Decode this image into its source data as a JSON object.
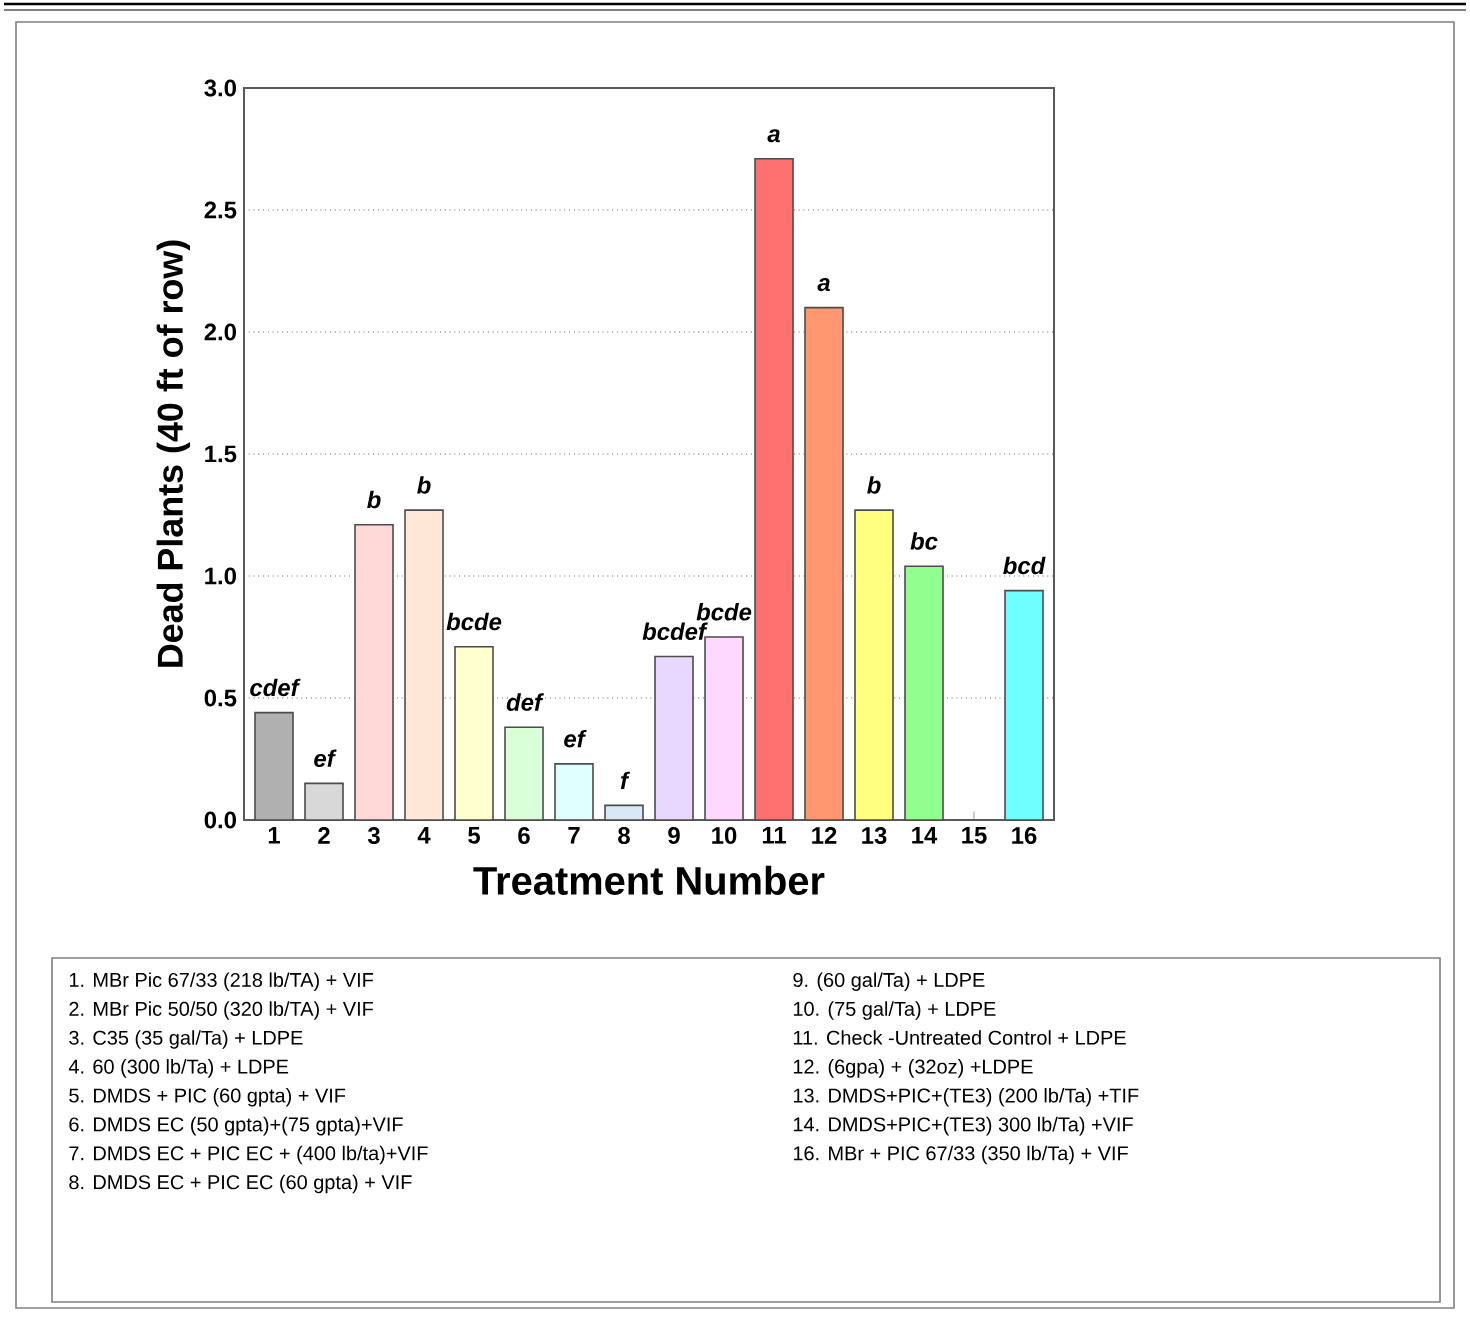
{
  "chart_data": {
    "type": "bar",
    "xlabel": "Treatment Number",
    "ylabel": "Dead Plants (40 ft of row)",
    "categories": [
      "1",
      "2",
      "3",
      "4",
      "5",
      "6",
      "7",
      "8",
      "9",
      "10",
      "11",
      "12",
      "13",
      "14",
      "15",
      "16"
    ],
    "values": [
      0.44,
      0.15,
      1.21,
      1.27,
      0.71,
      0.38,
      0.23,
      0.06,
      0.67,
      0.75,
      2.71,
      2.1,
      1.27,
      1.04,
      null,
      0.94
    ],
    "colors": [
      "#b0b0b0",
      "#d8d8d8",
      "#ffd8d8",
      "#ffe8d8",
      "#ffffd0",
      "#d8ffd8",
      "#e0ffff",
      "#d8e8f8",
      "#e8d8ff",
      "#ffd8ff",
      "#ff7070",
      "#ff9870",
      "#ffff80",
      "#90ff90",
      "#ffffff",
      "#70ffff"
    ],
    "value_labels": [
      "cdef",
      "ef",
      "b",
      "b",
      "bcde",
      "def",
      "ef",
      "f",
      "bcdef",
      "bcde",
      "a",
      "a",
      "b",
      "bc",
      null,
      "bcd"
    ],
    "ylim": [
      0,
      3.0
    ],
    "yticks": [
      {
        "value": 0,
        "label": "0.0"
      },
      {
        "value": 0.5,
        "label": "0.5"
      },
      {
        "value": 1.0,
        "label": "1.0"
      },
      {
        "value": 1.5,
        "label": "1.5"
      },
      {
        "value": 2.0,
        "label": "2.0"
      },
      {
        "value": 2.5,
        "label": "2.5"
      },
      {
        "value": 3.0,
        "label": "3.0"
      }
    ],
    "grid": "y",
    "annotations": [
      "1. MBr Pic 67/33 (218 lb/TA) + VIF",
      "2. MBr Pic 50/50 (320 lb/TA) + VIF",
      "3. C35 (35 gal/Ta) + LDPE",
      "4. 60 (300 lb/Ta) + LDPE",
      "5. DMDS + PIC (60 gpta) + VIF",
      "6. DMDS EC (50 gpta)+(75 gpta)+VIF",
      "7. DMDS EC + PIC EC + (400 lb/ta)+VIF",
      "8. DMDS EC + PIC EC (60 gpta) + VIF",
      "9. (60 gal/Ta) + LDPE",
      "10. (75 gal/Ta) + LDPE",
      "11.  Check -Untreated Control + LDPE",
      "12. (6gpa) + (32oz) +LDPE",
      "13. DMDS+PIC+(TE3) (200 lb/Ta) +TIF",
      "14. DMDS+PIC+(TE3) 300 lb/Ta) +VIF",
      "16. MBr + PIC 67/33 (350 lb/Ta) + VIF"
    ]
  }
}
